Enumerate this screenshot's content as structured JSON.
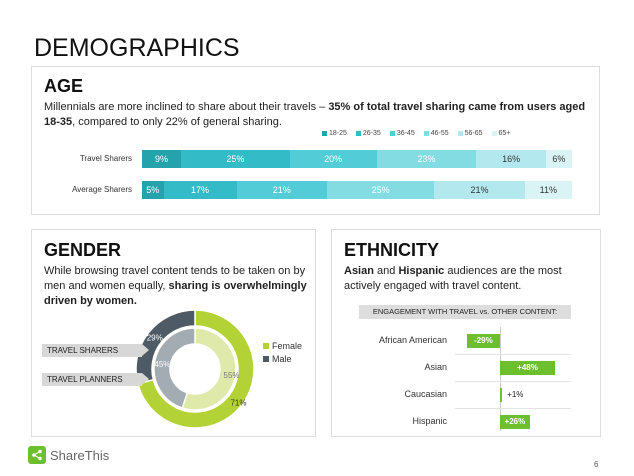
{
  "title": "DEMOGRAPHICS",
  "age": {
    "heading": "AGE",
    "desc_plain": "Millennials are more inclined to share about their travels – ",
    "desc_bold": "35% of total travel sharing came from users aged 18-35",
    "desc_tail": ", compared to only 22% of general sharing."
  },
  "gender": {
    "heading": "GENDER",
    "desc_plain": "While browsing travel content tends to be taken on by men and women equally, ",
    "desc_bold": "sharing is overwhelmingly driven by women.",
    "label_outer": "TRAVEL SHARERS",
    "label_inner": "TRAVEL PLANNERS"
  },
  "ethnicity": {
    "heading": "ETHNICITY",
    "desc_b1": "Asian",
    "desc_m1": " and ",
    "desc_b2": "Hispanic",
    "desc_m2": " audiences are the most actively engaged with travel content.",
    "table_heading": "ENGAGEMENT WITH TRAVEL vs. OTHER CONTENT:"
  },
  "chart_data": [
    {
      "type": "bar",
      "stacked": true,
      "orientation": "horizontal",
      "categories": [
        "Travel Sharers",
        "Average Sharers"
      ],
      "series": [
        {
          "name": "18-25",
          "values": [
            9,
            5
          ],
          "labels": [
            "9%",
            "5%"
          ],
          "color": "#25a3ad"
        },
        {
          "name": "26-35",
          "values": [
            25,
            17
          ],
          "labels": [
            "25%",
            "17%"
          ],
          "color": "#33bcc7"
        },
        {
          "name": "36-45",
          "values": [
            20,
            21
          ],
          "labels": [
            "20%",
            "21%"
          ],
          "color": "#52cdd7"
        },
        {
          "name": "46-55",
          "values": [
            23,
            25
          ],
          "labels": [
            "23%",
            "25%"
          ],
          "color": "#84dce3"
        },
        {
          "name": "56-65",
          "values": [
            16,
            21
          ],
          "labels": [
            "16%",
            "21%"
          ],
          "color": "#b3e9ee"
        },
        {
          "name": "65+",
          "values": [
            6,
            11
          ],
          "labels": [
            "6%",
            "11%"
          ],
          "color": "#daf4f6"
        }
      ],
      "legend": "top-right"
    },
    {
      "type": "pie",
      "donut": true,
      "rings": [
        {
          "label": "TRAVEL SHARERS",
          "slices": [
            {
              "name": "Female",
              "value": 71,
              "label": "71%"
            },
            {
              "name": "Male",
              "value": 29,
              "label": "29%"
            }
          ]
        },
        {
          "label": "TRAVEL PLANNERS",
          "slices": [
            {
              "name": "Female",
              "value": 55,
              "label": "55%"
            },
            {
              "name": "Male",
              "value": 45,
              "label": "45%"
            }
          ]
        }
      ],
      "legend": [
        {
          "name": "Female",
          "color": "#b3d235"
        },
        {
          "name": "Male",
          "color": "#4e5b66"
        }
      ],
      "colors": {
        "outer_female": "#b3d235",
        "outer_male": "#4e5b66",
        "inner_female": "#dfe9aa",
        "inner_male": "#a3acb3"
      }
    },
    {
      "type": "bar",
      "orientation": "horizontal",
      "title": "ENGAGEMENT WITH TRAVEL vs. OTHER CONTENT:",
      "categories": [
        "African American",
        "Asian",
        "Caucasian",
        "Hispanic"
      ],
      "values": [
        -29,
        48,
        1,
        26
      ],
      "labels": [
        "-29%",
        "+48%",
        "+1%",
        "+26%"
      ],
      "xlim": [
        -100,
        150
      ],
      "color": "#6dbf2e"
    }
  ],
  "footer": {
    "brand": "ShareThis",
    "page": "6"
  }
}
